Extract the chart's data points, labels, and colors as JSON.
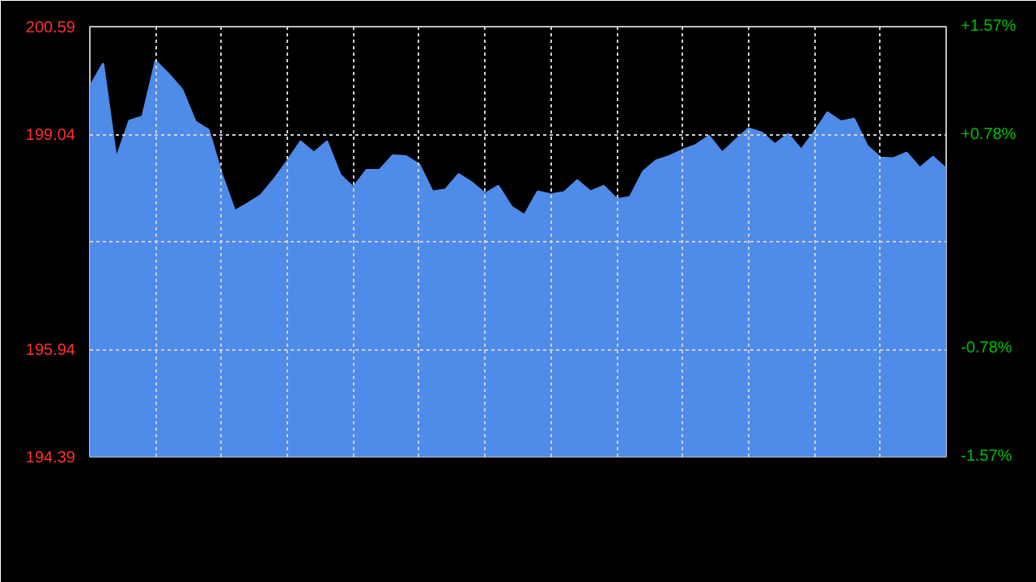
{
  "chart_data": {
    "type": "area",
    "categories": [
      null,
      null,
      null,
      null,
      null,
      null,
      null,
      null,
      null,
      null,
      null,
      null,
      null,
      null,
      null,
      null,
      null,
      null,
      null,
      null,
      null,
      null,
      null,
      null,
      null,
      null,
      null,
      null,
      null,
      null,
      null,
      null,
      null,
      null,
      null,
      null,
      null,
      null,
      null,
      null,
      null,
      null,
      null,
      null,
      null,
      null,
      null,
      null,
      null,
      null,
      null,
      null,
      null,
      null,
      null,
      null,
      null,
      null,
      null,
      null,
      null,
      null,
      null,
      null,
      null,
      null
    ],
    "series": [
      {
        "color": "#4f8be9",
        "values": [
          199.72,
          200.05,
          198.68,
          199.23,
          199.29,
          200.09,
          199.9,
          199.68,
          199.22,
          199.1,
          198.46,
          197.93,
          198.04,
          198.16,
          198.39,
          198.65,
          198.93,
          198.77,
          198.93,
          198.45,
          198.27,
          198.52,
          198.52,
          198.73,
          198.72,
          198.6,
          198.21,
          198.24,
          198.46,
          198.34,
          198.18,
          198.29,
          197.99,
          197.87,
          198.21,
          198.17,
          198.2,
          198.37,
          198.21,
          198.29,
          198.1,
          198.13,
          198.5,
          198.66,
          198.72,
          198.81,
          198.88,
          199.01,
          198.77,
          198.95,
          199.12,
          199.06,
          198.89,
          199.04,
          198.81,
          199.07,
          199.35,
          199.22,
          199.26,
          198.87,
          198.7,
          198.69,
          198.77,
          198.55,
          198.71,
          198.54
        ]
      }
    ],
    "ylim": [
      194.39,
      200.59
    ],
    "yticks": [
      194.39,
      195.94,
      {
        "value": 197.49,
        "label": null
      },
      199.04,
      200.59
    ],
    "y2lim": [
      -1.57,
      1.57
    ],
    "y2ticks": [
      {
        "value": -1.57,
        "label": "-1.57%"
      },
      {
        "value": -0.78,
        "label": "-0.78%"
      },
      {
        "value": 0,
        "label": null
      },
      {
        "value": 0.78,
        "label": "+0.78%"
      },
      {
        "value": 1.57,
        "label": "+1.57%"
      }
    ],
    "grid": true
  }
}
